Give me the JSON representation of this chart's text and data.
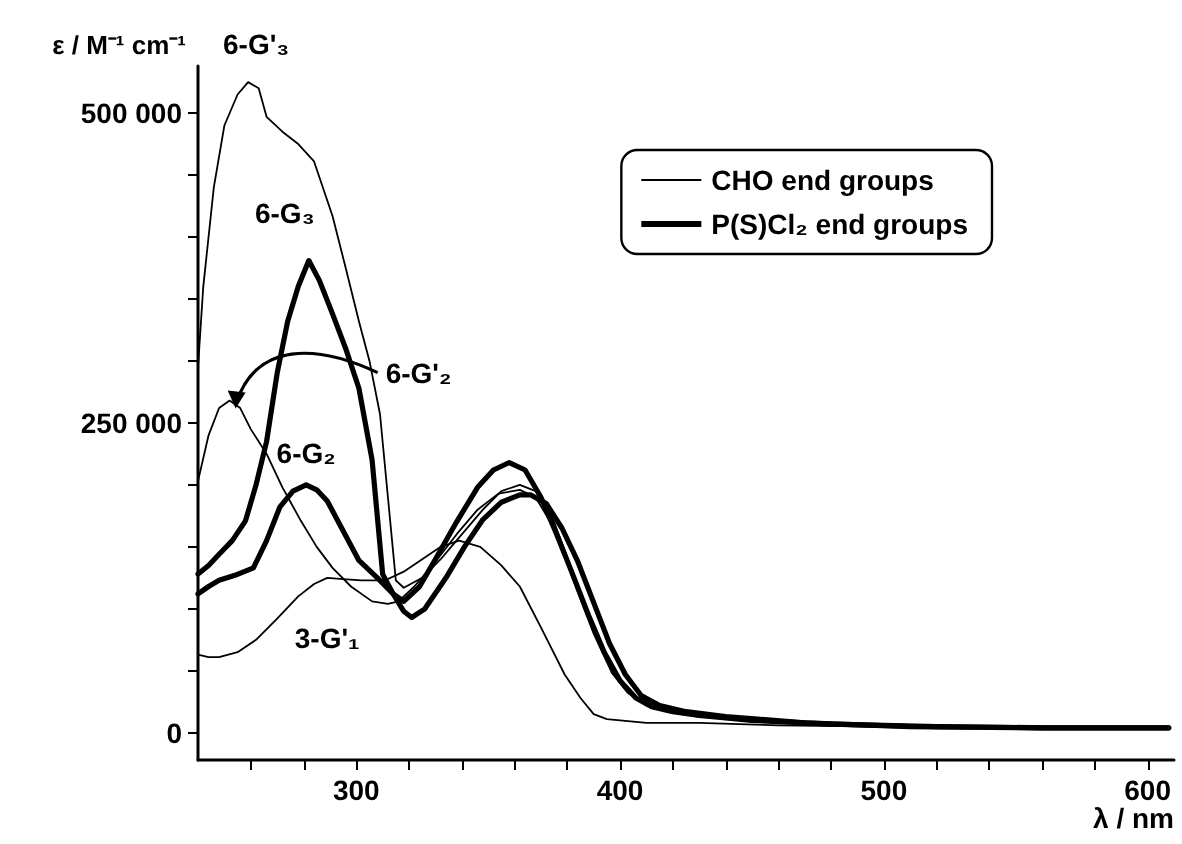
{
  "chart_data": {
    "type": "line",
    "xlabel": "λ / nm",
    "ylabel": "ε / M⁻¹ cm⁻¹",
    "xlim": [
      240,
      610
    ],
    "ylim": [
      -22000,
      538000
    ],
    "xticks": [
      {
        "value": 260,
        "label": null
      },
      {
        "value": 280,
        "label": null
      },
      300,
      {
        "value": 320,
        "label": null
      },
      {
        "value": 340,
        "label": null
      },
      {
        "value": 360,
        "label": null
      },
      {
        "value": 380,
        "label": null
      },
      400,
      {
        "value": 420,
        "label": null
      },
      {
        "value": 440,
        "label": null
      },
      {
        "value": 460,
        "label": null
      },
      {
        "value": 480,
        "label": null
      },
      500,
      {
        "value": 520,
        "label": null
      },
      {
        "value": 540,
        "label": null
      },
      {
        "value": 560,
        "label": null
      },
      {
        "value": 580,
        "label": null
      },
      600
    ],
    "yticks": [
      0,
      {
        "value": 50000,
        "label": null
      },
      {
        "value": 100000,
        "label": null
      },
      {
        "value": 150000,
        "label": null
      },
      {
        "value": 200000,
        "label": null
      },
      {
        "value": 250000,
        "label": "250 000"
      },
      {
        "value": 300000,
        "label": null
      },
      {
        "value": 350000,
        "label": null
      },
      {
        "value": 400000,
        "label": null
      },
      {
        "value": 450000,
        "label": null
      },
      {
        "value": 500000,
        "label": "500 000"
      }
    ],
    "grid": false,
    "legend": "top right",
    "marker": "none",
    "line_style": "solid",
    "series": [
      {
        "name": "CHO end groups",
        "color": "#000000",
        "x": [
          240,
          242,
          246,
          250,
          255,
          259,
          263,
          266,
          272,
          278,
          284,
          291,
          296,
          301,
          305,
          309,
          312,
          315,
          318,
          325,
          332,
          340,
          348,
          355,
          362,
          368,
          375,
          382,
          390,
          397,
          403,
          410,
          418,
          430,
          450,
          470,
          500,
          530,
          560,
          590,
          608
        ],
        "values": [
          295000,
          360000,
          440000,
          490000,
          515000,
          525000,
          520000,
          497000,
          485000,
          475000,
          461000,
          417000,
          375000,
          332000,
          300000,
          257000,
          190000,
          123000,
          117000,
          125000,
          140000,
          160000,
          180000,
          195000,
          200000,
          195000,
          170000,
          130000,
          85000,
          50000,
          33000,
          22000,
          17000,
          13000,
          10000,
          7000,
          5000,
          4000,
          4000,
          4000,
          4000
        ]
      },
      {
        "color": "#000000",
        "x": [
          240,
          244,
          248,
          252,
          256,
          260,
          266,
          272,
          279,
          285,
          291,
          298,
          306,
          312,
          316,
          322,
          330,
          338,
          346,
          354,
          362,
          368,
          375,
          382,
          390,
          397,
          403,
          410,
          418,
          430,
          450,
          470,
          500,
          530,
          560,
          590,
          608
        ],
        "values": [
          203000,
          240000,
          262000,
          268000,
          262000,
          245000,
          225000,
          198000,
          171000,
          150000,
          133000,
          118000,
          106000,
          104000,
          106000,
          118000,
          138000,
          160000,
          180000,
          193000,
          196000,
          190000,
          165000,
          125000,
          80000,
          48000,
          32000,
          22000,
          17000,
          13000,
          10000,
          7000,
          5000,
          4000,
          4000,
          4000,
          4000
        ]
      },
      {
        "color": "#000000",
        "x": [
          240,
          244,
          248,
          255,
          262,
          270,
          278,
          284,
          289,
          295,
          302,
          311,
          318,
          325,
          332,
          339,
          347,
          355,
          362,
          370,
          379,
          385,
          390,
          395,
          400,
          410,
          430,
          460,
          500,
          550,
          608
        ],
        "values": [
          63000,
          61000,
          61000,
          65000,
          75000,
          92000,
          110000,
          120000,
          125000,
          124000,
          123000,
          123000,
          130000,
          140000,
          150000,
          155000,
          150000,
          135000,
          118000,
          85000,
          47000,
          28000,
          15000,
          11000,
          10000,
          8000,
          8000,
          6000,
          5000,
          5000,
          4000
        ]
      },
      {
        "name": "P(S)Cl₂ end groups",
        "color": "#000000",
        "x": [
          240,
          244,
          248,
          253,
          258,
          262,
          266,
          270,
          274,
          278,
          282,
          286,
          291,
          296,
          301,
          306,
          310,
          314,
          318,
          324,
          330,
          338,
          346,
          352,
          358,
          364,
          370,
          376,
          382,
          388,
          394,
          400,
          406,
          412,
          420,
          430,
          450,
          480,
          520,
          560,
          608
        ],
        "values": [
          128000,
          135000,
          144000,
          155000,
          171000,
          200000,
          235000,
          290000,
          332000,
          360000,
          381000,
          365000,
          338000,
          310000,
          278000,
          220000,
          128000,
          112000,
          106000,
          118000,
          140000,
          170000,
          198000,
          212000,
          218000,
          212000,
          190000,
          160000,
          128000,
          95000,
          65000,
          42000,
          28000,
          21000,
          17000,
          14000,
          10000,
          7000,
          5000,
          4000,
          4000
        ]
      },
      {
        "color": "#000000",
        "x": [
          240,
          244,
          248,
          254,
          261,
          266,
          271,
          276,
          281,
          285,
          289,
          295,
          301,
          308,
          314,
          318,
          321,
          326,
          334,
          341,
          348,
          355,
          362,
          366,
          372,
          378,
          384,
          390,
          396,
          402,
          408,
          415,
          425,
          440,
          470,
          510,
          560,
          608
        ],
        "values": [
          112000,
          118000,
          123000,
          127000,
          133000,
          155000,
          182000,
          195000,
          200000,
          196000,
          187000,
          163000,
          139000,
          125000,
          112000,
          98000,
          93000,
          100000,
          125000,
          150000,
          172000,
          186000,
          192000,
          192000,
          185000,
          165000,
          138000,
          105000,
          72000,
          47000,
          30000,
          22000,
          17000,
          13000,
          8000,
          5000,
          4000,
          4000
        ]
      }
    ],
    "annotations": [
      {
        "text": "6-G'₃",
        "x": 259,
        "y": 525000
      },
      {
        "text": "6-G₃",
        "x": 282,
        "y": 381000
      },
      {
        "text": "6-G'₂",
        "x": 252,
        "y": 268000
      },
      {
        "text": "6-G₂",
        "x": 281,
        "y": 200000
      },
      {
        "text": "3-G'₁",
        "x": 289,
        "y": 125000
      }
    ]
  }
}
